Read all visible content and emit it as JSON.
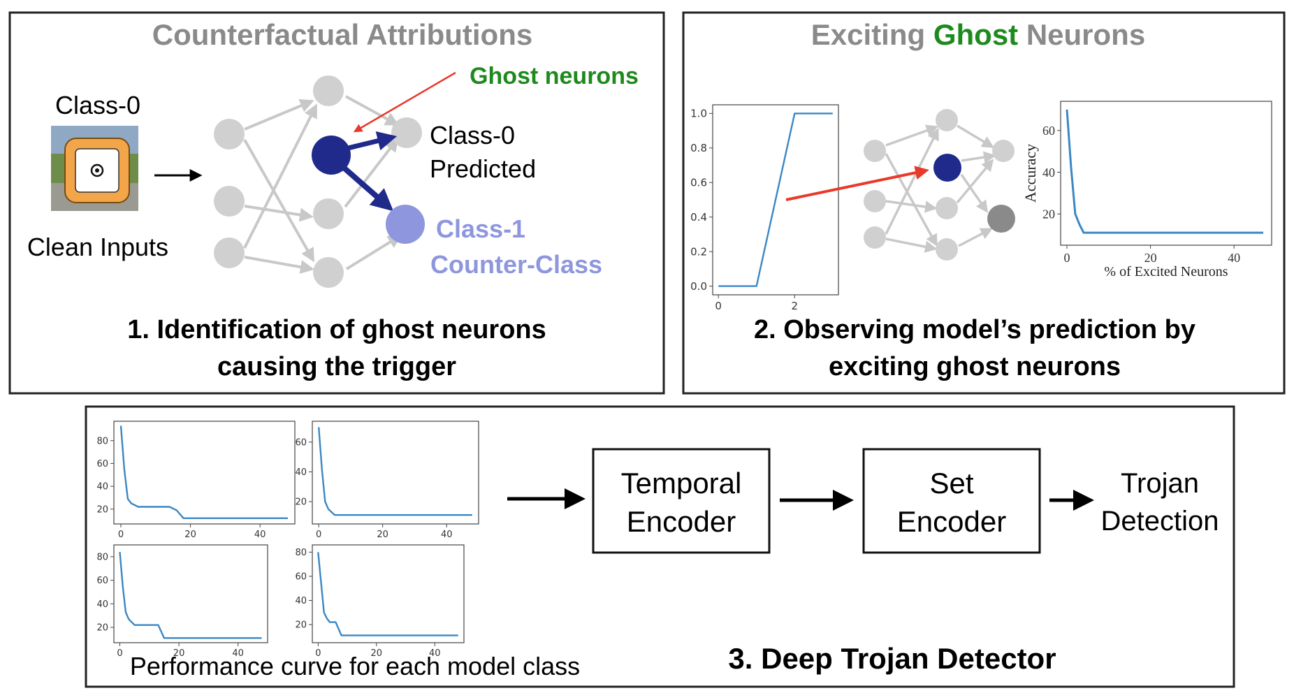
{
  "panel1": {
    "title": "Counterfactual Attributions",
    "ghost_label": "Ghost neurons",
    "class0_label": "Class-0",
    "clean_inputs_label": "Clean Inputs",
    "predicted_line1": "Class-0",
    "predicted_line2": "Predicted",
    "counter_line1": "Class-1",
    "counter_line2": "Counter-Class",
    "caption_line1": "1. Identification of ghost neurons",
    "caption_line2": "causing the trigger"
  },
  "panel2": {
    "title_part1": "Exciting ",
    "title_part2": "Ghost",
    "title_part3": " Neurons",
    "caption_line1": "2. Observing model’s prediction by",
    "caption_line2": "exciting ghost neurons"
  },
  "panel3": {
    "temporal_line1": "Temporal",
    "temporal_line2": "Encoder",
    "set_line1": "Set",
    "set_line2": "Encoder",
    "output_line1": "Trojan",
    "output_line2": "Detection",
    "curves_caption": "Performance curve for each model class",
    "caption": "3. Deep Trojan Detector"
  },
  "colors": {
    "title_gray": "#8a8a8a",
    "ghost_green": "#1e8a1e",
    "neuron_gray": "#d0d0d0",
    "ghost_navy": "#1f2a8a",
    "counter_lavender": "#8e96de",
    "arrow_red": "#e8392a",
    "curve_blue": "#3b87c4"
  },
  "chart_data": [
    {
      "type": "line",
      "x": [
        0,
        1,
        2,
        3
      ],
      "y": [
        0,
        0,
        1,
        1
      ],
      "xticks": [
        "0",
        "2"
      ],
      "yticks": [
        "0.0",
        "0.2",
        "0.4",
        "0.6",
        "0.8",
        "1.0"
      ],
      "xlim": [
        -0.15,
        3.15
      ],
      "ylim": [
        -0.05,
        1.05
      ]
    },
    {
      "type": "line",
      "ylabel": "Accuracy",
      "xlabel": "% of Excited Neurons",
      "x": [
        0,
        1,
        2,
        3,
        4,
        5,
        10,
        20,
        30,
        40,
        47
      ],
      "y": [
        70,
        42,
        20,
        15,
        11,
        11,
        11,
        11,
        11,
        11,
        11
      ],
      "xticks": [
        "0",
        "20",
        "40"
      ],
      "yticks": [
        "20",
        "40",
        "60"
      ],
      "xlim": [
        -1.5,
        49
      ],
      "ylim": [
        5,
        74
      ]
    },
    {
      "type": "line",
      "x": [
        0,
        1,
        2,
        3,
        5,
        10,
        14,
        16,
        18,
        20,
        30,
        40,
        48
      ],
      "y": [
        93,
        55,
        29,
        25,
        22,
        22,
        22,
        19,
        12,
        12,
        12,
        12,
        12
      ],
      "xticks": [
        "0",
        "20",
        "40"
      ],
      "yticks": [
        "20",
        "40",
        "60",
        "80"
      ],
      "xlim": [
        -2,
        50
      ],
      "ylim": [
        7,
        97
      ]
    },
    {
      "type": "line",
      "x": [
        0,
        1,
        2,
        3,
        5,
        10,
        20,
        30,
        40,
        48
      ],
      "y": [
        70,
        42,
        20,
        15,
        11,
        11,
        11,
        11,
        11,
        11
      ],
      "xticks": [
        "0",
        "20",
        "40"
      ],
      "yticks": [
        "20",
        "40",
        "60"
      ],
      "xlim": [
        -2,
        50
      ],
      "ylim": [
        5,
        74
      ]
    },
    {
      "type": "line",
      "x": [
        0,
        1,
        2,
        3,
        5,
        10,
        13,
        15,
        20,
        30,
        40,
        48
      ],
      "y": [
        84,
        55,
        33,
        27,
        22,
        22,
        22,
        11,
        11,
        11,
        11,
        11
      ],
      "xticks": [
        "0",
        "20",
        "40"
      ],
      "yticks": [
        "20",
        "40",
        "60",
        "80"
      ],
      "xlim": [
        -2,
        50
      ],
      "ylim": [
        7,
        90
      ]
    },
    {
      "type": "line",
      "x": [
        0,
        1,
        2,
        3,
        4,
        5,
        6,
        8,
        20,
        30,
        40,
        48
      ],
      "y": [
        80,
        55,
        30,
        25,
        22,
        22,
        22,
        11,
        11,
        11,
        11,
        11
      ],
      "xticks": [
        "0",
        "20",
        "40"
      ],
      "yticks": [
        "20",
        "40",
        "60",
        "80"
      ],
      "xlim": [
        -2,
        50
      ],
      "ylim": [
        5,
        86
      ]
    }
  ]
}
